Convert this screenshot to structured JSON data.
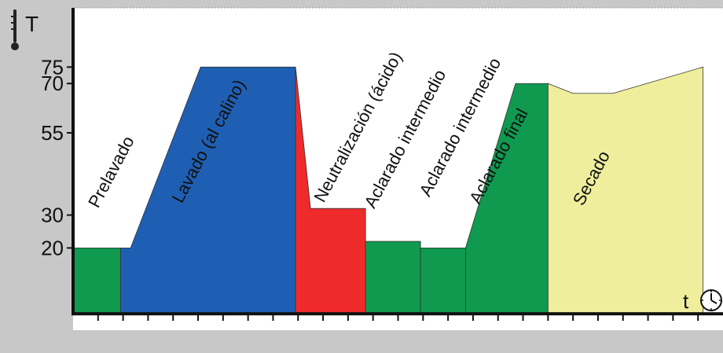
{
  "chart_data": {
    "type": "area",
    "title": "",
    "ylabel": "T",
    "xlabel": "t",
    "yticks": [
      20,
      30,
      55,
      70,
      75
    ],
    "ylim": [
      -5,
      93
    ],
    "xlim": [
      0,
      26
    ],
    "xticks": [
      1,
      2,
      3,
      4,
      5,
      6,
      7,
      8,
      9,
      10,
      11,
      12,
      13,
      14,
      15,
      16,
      17,
      18,
      19,
      20,
      21,
      22,
      23,
      24,
      25
    ],
    "grid": false,
    "colors": {
      "green": "#0f9a50",
      "blue": "#1f5fb3",
      "red": "#ee2a2a",
      "yellow": "#eeee9c",
      "background": "#ffffff",
      "frame": "#c8c8c8"
    },
    "phases": [
      {
        "label": "Prelavado",
        "color": "green",
        "points": [
          [
            0,
            20
          ],
          [
            1.9,
            20
          ]
        ]
      },
      {
        "label": "Lavado (al calino)",
        "color": "blue",
        "points": [
          [
            1.9,
            20
          ],
          [
            2.3,
            20
          ],
          [
            5.1,
            75
          ],
          [
            8.9,
            75
          ]
        ]
      },
      {
        "label": "Neutralización (ácido)",
        "color": "red",
        "points": [
          [
            8.9,
            75
          ],
          [
            9.5,
            32
          ],
          [
            11.7,
            32
          ]
        ]
      },
      {
        "label": "Aclarado intermedio",
        "color": "green",
        "points": [
          [
            11.7,
            22
          ],
          [
            13.9,
            22
          ]
        ]
      },
      {
        "label": "Aclarado intermedio",
        "color": "green",
        "points": [
          [
            13.9,
            20
          ],
          [
            15.7,
            20
          ]
        ]
      },
      {
        "label": "Aclarado final",
        "color": "green",
        "points": [
          [
            15.7,
            20
          ],
          [
            17.7,
            70
          ],
          [
            19.0,
            70
          ]
        ]
      },
      {
        "label": "Secado",
        "color": "yellow",
        "points": [
          [
            19.0,
            70
          ],
          [
            20.0,
            67
          ],
          [
            21.6,
            67
          ],
          [
            25.2,
            75
          ]
        ]
      }
    ]
  }
}
